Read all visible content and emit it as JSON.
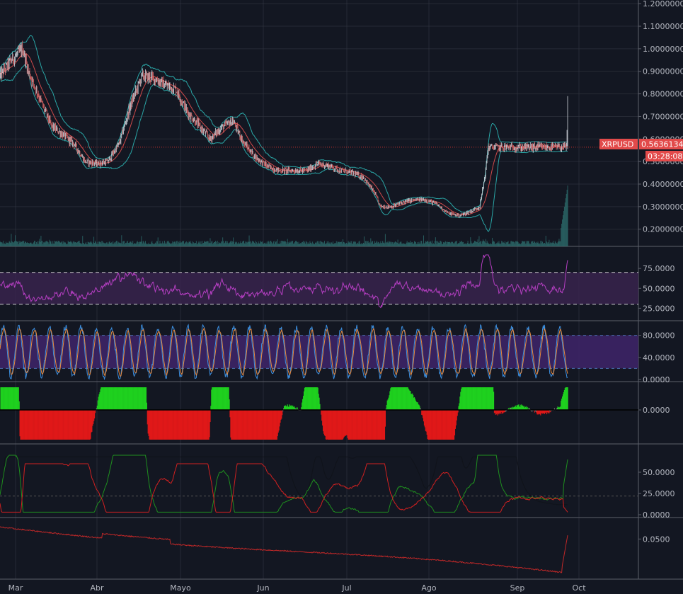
{
  "symbol": "XRPUSD",
  "last_price_label": "0.5636134",
  "countdown": "03:28:08",
  "colors": {
    "background": "#131722",
    "grid": "#363a45",
    "price_line": "#c23030",
    "candle_up": "#cfd3da",
    "candle_down": "#e06767",
    "bollinger": "#2aa6a6",
    "bollinger_mid": "#d04a4a",
    "volume": "#2c6a6a",
    "rsi": "#b33ec0",
    "rsi_band": "#3b2450",
    "stoch_k": "#3c8fe0",
    "stoch_d": "#e8883c",
    "stoch_band": "#3d2366",
    "hist_pos": "#1fd11f",
    "hist_neg": "#e01818",
    "hist_zero": "#888888",
    "di_plus": "#1f8f1f",
    "di_minus": "#d02020",
    "adx": "#10131a",
    "lower_line": "#c02828",
    "tag_bg": "#e24a4a"
  },
  "chart_data": [
    {
      "type": "candlestick",
      "name": "price",
      "x_labels": [
        "Mar",
        "Abr",
        "Mayo",
        "Jun",
        "Jul",
        "Ago",
        "Sep",
        "Oct"
      ],
      "y_ticks": [
        "1.2000000",
        "1.1000000",
        "1.0000000",
        "0.9000000",
        "0.8000000",
        "0.7000000",
        "0.6000000",
        "0.5000000",
        "0.4000000",
        "0.3000000",
        "0.2000000"
      ],
      "ylim": [
        0.13,
        1.21
      ],
      "last_price": 0.5636134,
      "close_path": [
        {
          "x": 0,
          "y": 0.88
        },
        {
          "x": 0.02,
          "y": 0.95
        },
        {
          "x": 0.04,
          "y": 1.0
        },
        {
          "x": 0.05,
          "y": 0.9
        },
        {
          "x": 0.07,
          "y": 0.78
        },
        {
          "x": 0.09,
          "y": 0.66
        },
        {
          "x": 0.11,
          "y": 0.62
        },
        {
          "x": 0.13,
          "y": 0.58
        },
        {
          "x": 0.15,
          "y": 0.5
        },
        {
          "x": 0.17,
          "y": 0.49
        },
        {
          "x": 0.19,
          "y": 0.5
        },
        {
          "x": 0.21,
          "y": 0.58
        },
        {
          "x": 0.23,
          "y": 0.75
        },
        {
          "x": 0.25,
          "y": 0.88
        },
        {
          "x": 0.27,
          "y": 0.87
        },
        {
          "x": 0.29,
          "y": 0.84
        },
        {
          "x": 0.31,
          "y": 0.82
        },
        {
          "x": 0.33,
          "y": 0.72
        },
        {
          "x": 0.35,
          "y": 0.66
        },
        {
          "x": 0.37,
          "y": 0.6
        },
        {
          "x": 0.39,
          "y": 0.65
        },
        {
          "x": 0.41,
          "y": 0.68
        },
        {
          "x": 0.43,
          "y": 0.58
        },
        {
          "x": 0.45,
          "y": 0.52
        },
        {
          "x": 0.47,
          "y": 0.48
        },
        {
          "x": 0.49,
          "y": 0.46
        },
        {
          "x": 0.52,
          "y": 0.46
        },
        {
          "x": 0.54,
          "y": 0.46
        },
        {
          "x": 0.56,
          "y": 0.49
        },
        {
          "x": 0.58,
          "y": 0.48
        },
        {
          "x": 0.6,
          "y": 0.46
        },
        {
          "x": 0.62,
          "y": 0.45
        },
        {
          "x": 0.64,
          "y": 0.43
        },
        {
          "x": 0.66,
          "y": 0.36
        },
        {
          "x": 0.67,
          "y": 0.3
        },
        {
          "x": 0.69,
          "y": 0.3
        },
        {
          "x": 0.71,
          "y": 0.32
        },
        {
          "x": 0.73,
          "y": 0.33
        },
        {
          "x": 0.75,
          "y": 0.33
        },
        {
          "x": 0.77,
          "y": 0.31
        },
        {
          "x": 0.79,
          "y": 0.27
        },
        {
          "x": 0.81,
          "y": 0.26
        },
        {
          "x": 0.83,
          "y": 0.28
        },
        {
          "x": 0.845,
          "y": 0.3
        },
        {
          "x": 0.855,
          "y": 0.45
        },
        {
          "x": 0.86,
          "y": 0.5636
        }
      ]
    },
    {
      "type": "line",
      "name": "rsi",
      "y_ticks": [
        "75.0000",
        "50.0000",
        "25.0000"
      ],
      "ylim": [
        12,
        100
      ],
      "levels": [
        70,
        30
      ]
    },
    {
      "type": "line",
      "name": "stochastic",
      "y_ticks": [
        "80.0000",
        "40.0000",
        "0.0000"
      ],
      "ylim": [
        0,
        100
      ],
      "levels": [
        80,
        20
      ]
    },
    {
      "type": "area",
      "name": "histogram",
      "y_ticks": [
        "0.0000"
      ]
    },
    {
      "type": "line",
      "name": "directional",
      "y_ticks": [
        "50.0000",
        "25.0000",
        "0.0000"
      ],
      "ylim": [
        0,
        80
      ]
    },
    {
      "type": "line",
      "name": "lower",
      "y_ticks": [
        "0.0500"
      ],
      "ylim": [
        0,
        0.075
      ]
    }
  ]
}
